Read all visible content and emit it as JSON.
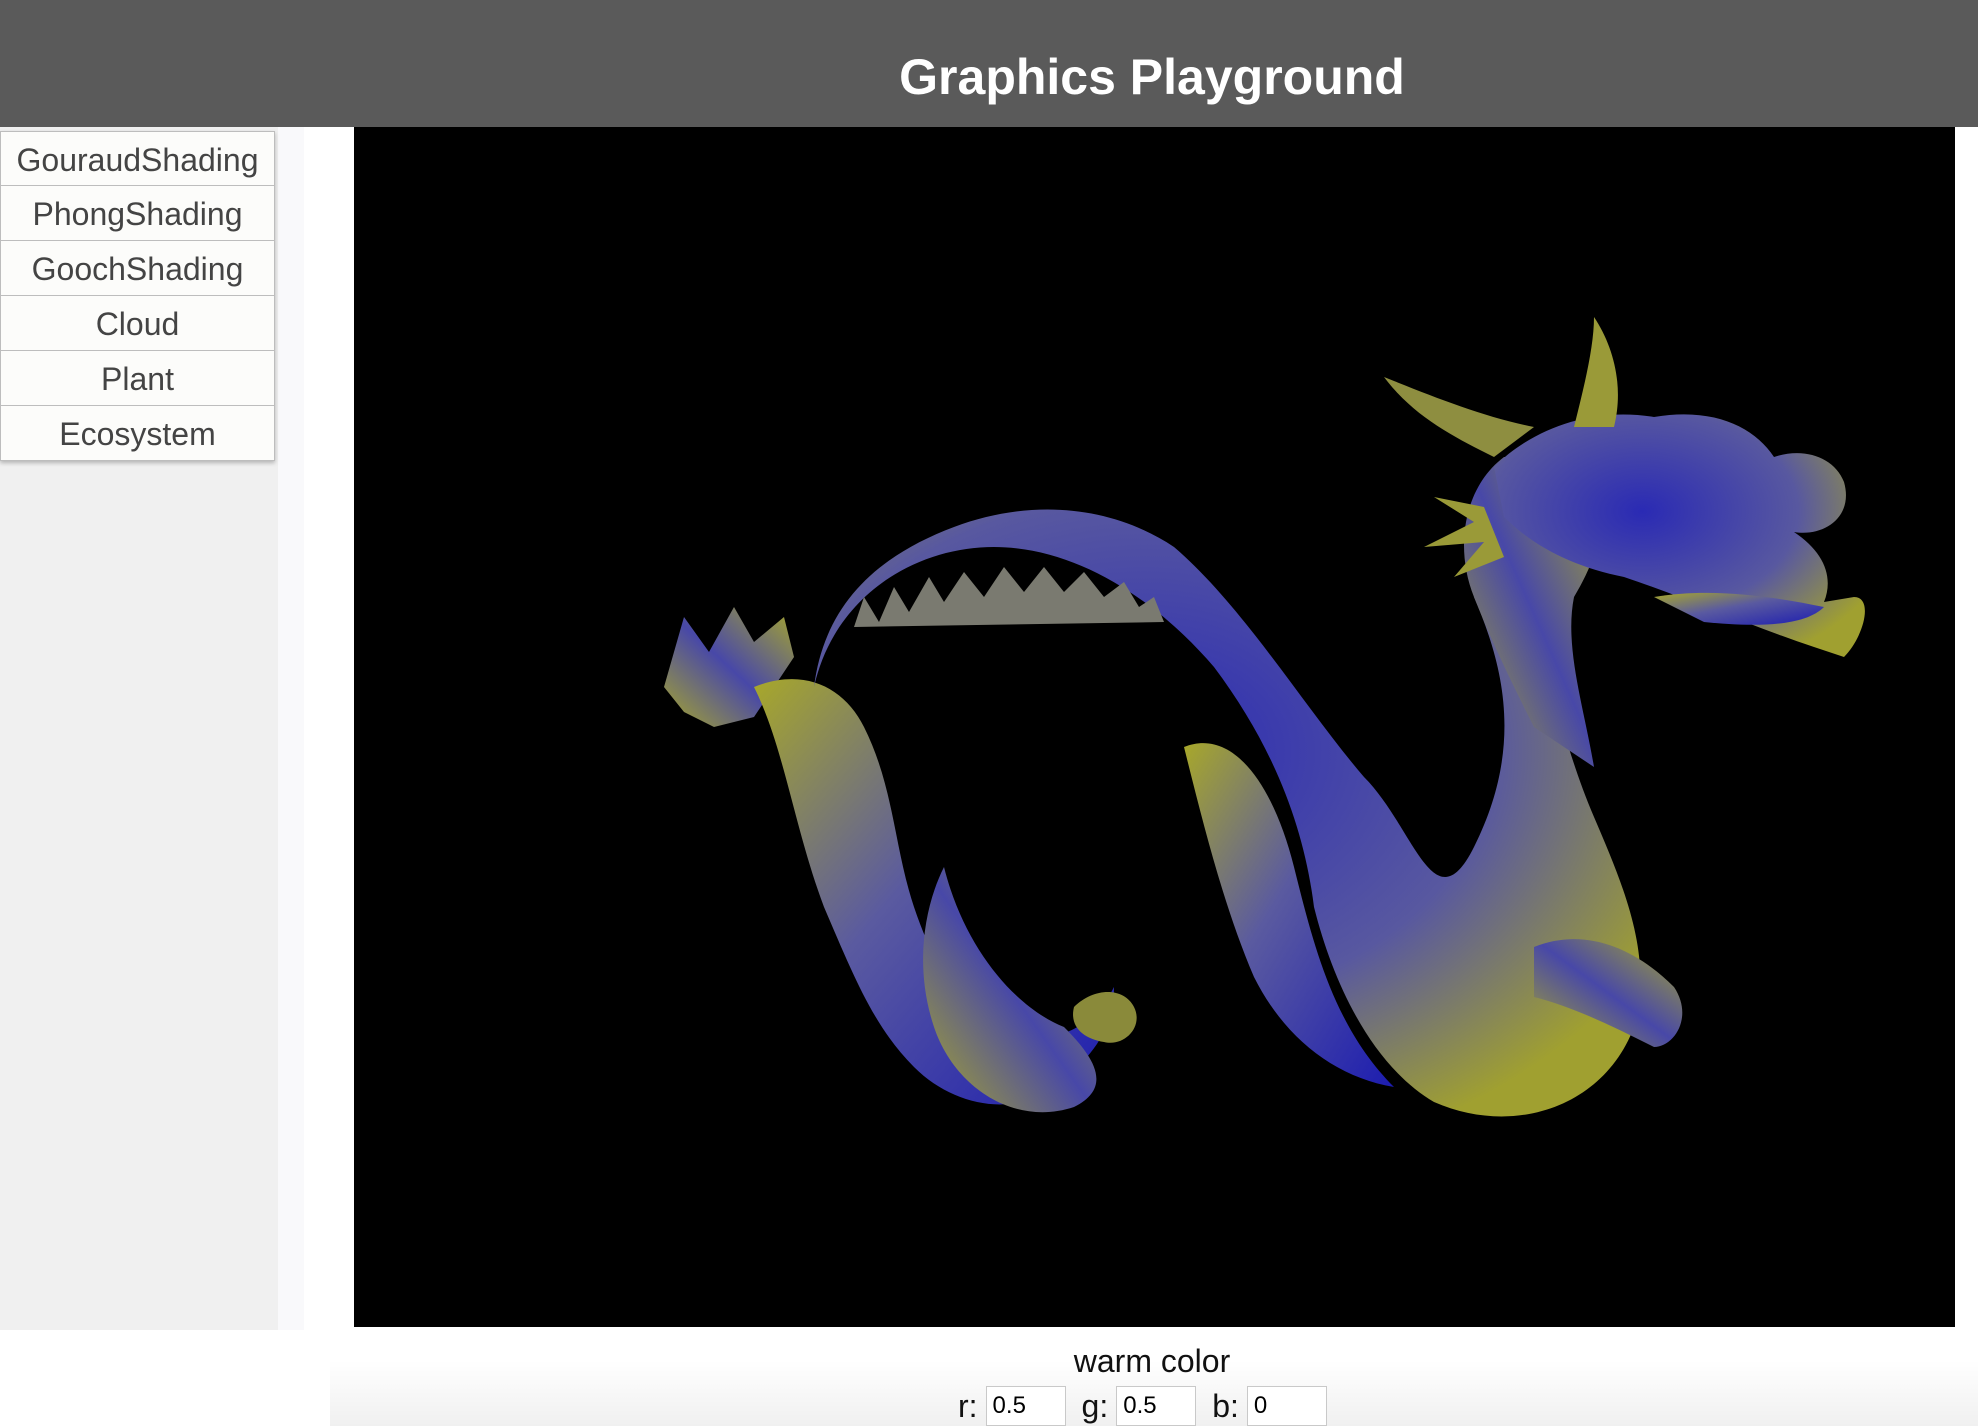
{
  "header": {
    "title": "Graphics Playground"
  },
  "sidebar": {
    "items": [
      {
        "label": "GouraudShading"
      },
      {
        "label": "PhongShading"
      },
      {
        "label": "GoochShading"
      },
      {
        "label": "Cloud"
      },
      {
        "label": "Plant"
      },
      {
        "label": "Ecosystem"
      }
    ]
  },
  "canvas": {
    "scene": "dragon-icon",
    "warm_color_hex": "#a8a82a",
    "cool_color_hex": "#1c1cb0",
    "background_hex": "#000000"
  },
  "controls": {
    "warm_label": "warm color",
    "r_label": "r:",
    "g_label": "g:",
    "b_label": "b:",
    "r_value": "0.5",
    "g_value": "0.5",
    "b_value": "0"
  }
}
